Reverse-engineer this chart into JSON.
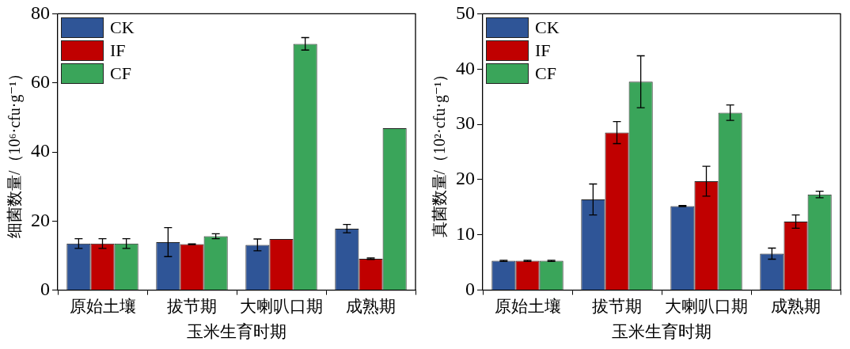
{
  "chart_data": [
    {
      "type": "bar",
      "xlabel": "玉米生育时期",
      "ylabel": "细菌数量/（10⁶·cfu·g⁻¹）",
      "categories": [
        "原始土壤",
        "拔节期",
        "大喇叭口期",
        "成熟期"
      ],
      "ylim": [
        0,
        80
      ],
      "yticks": [
        0,
        20,
        40,
        60,
        80
      ],
      "grid": false,
      "legend": "top left",
      "series": [
        {
          "name": "CK",
          "color": "#2f5597",
          "values": [
            13.5,
            13.9,
            13.1,
            17.8
          ],
          "errors": [
            1.4,
            4.2,
            1.7,
            1.2
          ]
        },
        {
          "name": "IF",
          "color": "#c00000",
          "values": [
            13.5,
            13.3,
            14.8,
            9.1
          ],
          "errors": [
            1.4,
            0.1,
            null,
            0.2
          ]
        },
        {
          "name": "CF",
          "color": "#3aa55a",
          "values": [
            13.5,
            15.6,
            71.3,
            46.9
          ],
          "errors": [
            1.4,
            0.7,
            1.8,
            null
          ]
        }
      ]
    },
    {
      "type": "bar",
      "xlabel": "玉米生育时期",
      "ylabel": "真菌数量/（10²·cfu·g⁻¹）",
      "categories": [
        "原始土壤",
        "拔节期",
        "大喇叭口期",
        "成熟期"
      ],
      "ylim": [
        0,
        50
      ],
      "yticks": [
        0,
        10,
        20,
        30,
        40,
        50
      ],
      "grid": false,
      "legend": "top left",
      "series": [
        {
          "name": "CK",
          "color": "#2f5597",
          "values": [
            5.3,
            16.4,
            15.2,
            6.6
          ],
          "errors": [
            0.1,
            2.8,
            0.1,
            1.0
          ]
        },
        {
          "name": "IF",
          "color": "#c00000",
          "values": [
            5.3,
            28.5,
            19.7,
            12.4
          ],
          "errors": [
            0.1,
            2.0,
            2.7,
            1.2
          ]
        },
        {
          "name": "CF",
          "color": "#3aa55a",
          "values": [
            5.3,
            37.7,
            32.1,
            17.3
          ],
          "errors": [
            0.1,
            4.7,
            1.4,
            0.6
          ]
        }
      ]
    }
  ]
}
